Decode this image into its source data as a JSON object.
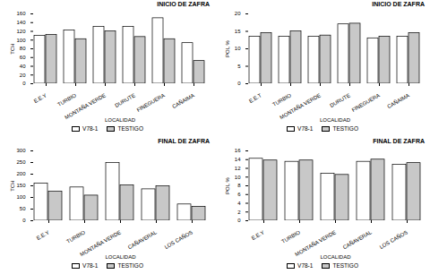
{
  "chart_data": [
    {
      "type": "bar",
      "title": "INICIO DE ZAFRA",
      "xlabel": "LOCALIDAD",
      "ylabel": "TCH",
      "categories": [
        "E.E.Y",
        "TURBIO",
        "MONTAÑA VERDE",
        "DURUTE",
        "FINEGUERA",
        "CAÑAIMA"
      ],
      "series": [
        {
          "name": "V78-1",
          "color": "white",
          "values": [
            110,
            122,
            130,
            130,
            150,
            93
          ]
        },
        {
          "name": "TESTIGO",
          "color": "#c8c8c8",
          "values": [
            112,
            102,
            120,
            107,
            102,
            52
          ]
        }
      ],
      "ylim": [
        0,
        160
      ],
      "yticks": [
        0,
        20,
        40,
        60,
        80,
        100,
        120,
        140,
        160
      ],
      "grid": false,
      "legend": "bottom"
    },
    {
      "type": "bar",
      "title": "INICIO DE ZAFRA",
      "xlabel": "LOCALIDAD",
      "ylabel": "POL %",
      "categories": [
        "E.E.T",
        "TURBIO",
        "MONTAÑA VERDE",
        "DURUTE",
        "FINEGUERA",
        "CAÑAIMA"
      ],
      "series": [
        {
          "name": "V78-1",
          "color": "white",
          "values": [
            13.5,
            13.5,
            13.5,
            17.0,
            13.0,
            13.5
          ]
        },
        {
          "name": "TESTIGO",
          "color": "#c8c8c8",
          "values": [
            14.5,
            15.0,
            13.8,
            17.2,
            13.5,
            14.5
          ]
        }
      ],
      "ylim": [
        0,
        20
      ],
      "yticks": [
        0,
        5,
        10,
        15,
        20
      ],
      "grid": false,
      "legend": "bottom"
    },
    {
      "type": "bar",
      "title": "FINAL DE ZAFRA",
      "xlabel": "LOCALIDAD",
      "ylabel": "TCH",
      "categories": [
        "E.E.Y",
        "TURBIO",
        "MONTAÑA VERDE",
        "CAÑAVERAL",
        "LOS CAÑOS"
      ],
      "series": [
        {
          "name": "V78-1",
          "color": "white",
          "values": [
            160,
            143,
            248,
            135,
            70
          ]
        },
        {
          "name": "TESTIGO",
          "color": "#c8c8c8",
          "values": [
            125,
            108,
            152,
            148,
            60
          ]
        }
      ],
      "ylim": [
        0,
        300
      ],
      "yticks": [
        0,
        50,
        100,
        150,
        200,
        250,
        300
      ],
      "grid": false,
      "legend": "bottom"
    },
    {
      "type": "bar",
      "title": "FINAL DE ZAFRA",
      "xlabel": "LOCALIDAD",
      "ylabel": "POL %",
      "categories": [
        "E.E.Y",
        "TURBIO",
        "MONTAÑA VERDE",
        "CAÑAVERAL",
        "LOS CAÑOS"
      ],
      "series": [
        {
          "name": "V78-1",
          "color": "white",
          "values": [
            14.2,
            13.5,
            10.8,
            13.5,
            12.8
          ]
        },
        {
          "name": "TESTIGO",
          "color": "#c8c8c8",
          "values": [
            13.8,
            13.8,
            10.5,
            14.0,
            13.2
          ]
        }
      ],
      "ylim": [
        0,
        16
      ],
      "yticks": [
        0,
        2,
        4,
        6,
        8,
        10,
        12,
        14,
        16
      ],
      "grid": false,
      "legend": "bottom"
    }
  ]
}
